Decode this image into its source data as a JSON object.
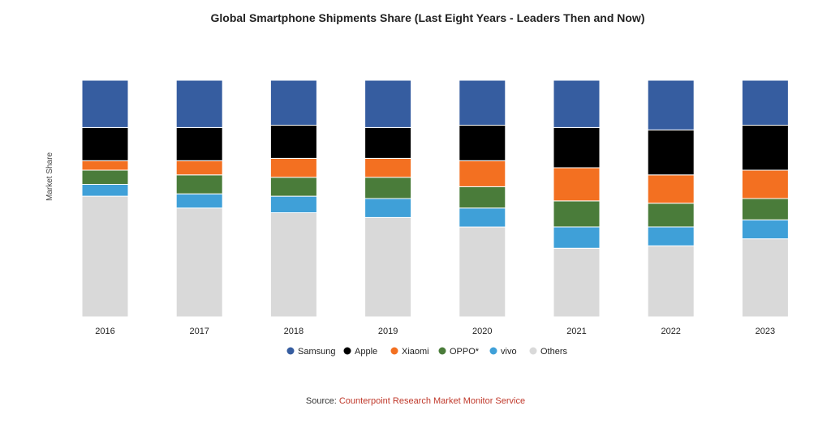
{
  "chart_data": {
    "type": "bar",
    "stacked": true,
    "normalized_percent": true,
    "title": "Global Smartphone Shipments Share (Last Eight Years - Leaders Then and Now)",
    "ylabel": "Market Share",
    "xlabel": "",
    "ylim": [
      0,
      100
    ],
    "grid": false,
    "legend_position": "bottom",
    "categories": [
      "2016",
      "2017",
      "2018",
      "2019",
      "2020",
      "2021",
      "2022",
      "2023"
    ],
    "series": [
      {
        "name": "Others",
        "color": "#d9d9d9",
        "values": [
          51,
          46,
          44,
          42,
          38,
          29,
          30,
          33
        ]
      },
      {
        "name": "vivo",
        "color": "#3fa0d8",
        "values": [
          5,
          6,
          7,
          8,
          8,
          9,
          8,
          8
        ]
      },
      {
        "name": "OPPO*",
        "color": "#4a7c3a",
        "values": [
          6,
          8,
          8,
          9,
          9,
          11,
          10,
          9
        ]
      },
      {
        "name": "Xiaomi",
        "color": "#f37021",
        "values": [
          4,
          6,
          8,
          8,
          11,
          14,
          12,
          12
        ]
      },
      {
        "name": "Apple",
        "color": "#000000",
        "values": [
          14,
          14,
          14,
          13,
          15,
          17,
          19,
          19
        ]
      },
      {
        "name": "Samsung",
        "color": "#365da0",
        "values": [
          20,
          20,
          19,
          20,
          19,
          20,
          21,
          19
        ]
      }
    ],
    "legend_order": [
      "Samsung",
      "Apple",
      "Xiaomi",
      "OPPO*",
      "vivo",
      "Others"
    ]
  },
  "source": {
    "prefix": "Source: ",
    "link_text": "Counterpoint Research Market Monitor Service"
  }
}
